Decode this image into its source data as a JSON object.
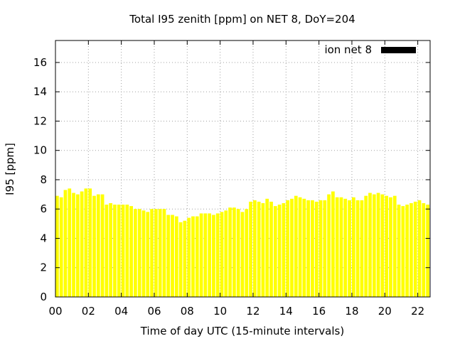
{
  "chart_data": {
    "type": "bar",
    "title": "Total I95 zenith [ppm] on NET 8, DoY=204",
    "xlabel": "Time of day UTC (15-minute intervals)",
    "ylabel": "I95 [ppm]",
    "ylim": [
      0,
      17.5
    ],
    "xlim": [
      0,
      22.75
    ],
    "yticks": [
      0,
      2,
      4,
      6,
      8,
      10,
      12,
      14,
      16
    ],
    "xticks": [
      "00",
      "02",
      "04",
      "06",
      "08",
      "10",
      "12",
      "14",
      "16",
      "18",
      "20",
      "22"
    ],
    "grid": true,
    "legend": {
      "label": "ion net 8",
      "position": "top-right",
      "swatch_color": "#000000"
    },
    "bar_color": "#ffff00",
    "series": [
      {
        "name": "ion net 8",
        "interval_hours": 0.25,
        "values": [
          6.9,
          6.8,
          7.3,
          7.4,
          7.1,
          7.0,
          7.2,
          7.4,
          7.4,
          6.9,
          7.0,
          7.0,
          6.3,
          6.4,
          6.3,
          6.3,
          6.3,
          6.3,
          6.2,
          6.0,
          6.0,
          5.9,
          5.8,
          6.0,
          6.0,
          6.0,
          6.0,
          5.6,
          5.6,
          5.5,
          5.1,
          5.2,
          5.4,
          5.5,
          5.5,
          5.7,
          5.7,
          5.7,
          5.6,
          5.7,
          5.8,
          5.9,
          6.1,
          6.1,
          6.0,
          5.8,
          6.0,
          6.5,
          6.6,
          6.5,
          6.4,
          6.7,
          6.5,
          6.2,
          6.3,
          6.4,
          6.6,
          6.7,
          6.9,
          6.8,
          6.7,
          6.6,
          6.6,
          6.5,
          6.6,
          6.6,
          7.0,
          7.2,
          6.8,
          6.8,
          6.7,
          6.6,
          6.8,
          6.6,
          6.6,
          6.9,
          7.1,
          7.0,
          7.1,
          7.0,
          6.9,
          6.8,
          6.9,
          6.3,
          6.2,
          6.3,
          6.4,
          6.5,
          6.6,
          6.4,
          6.3
        ]
      }
    ]
  }
}
